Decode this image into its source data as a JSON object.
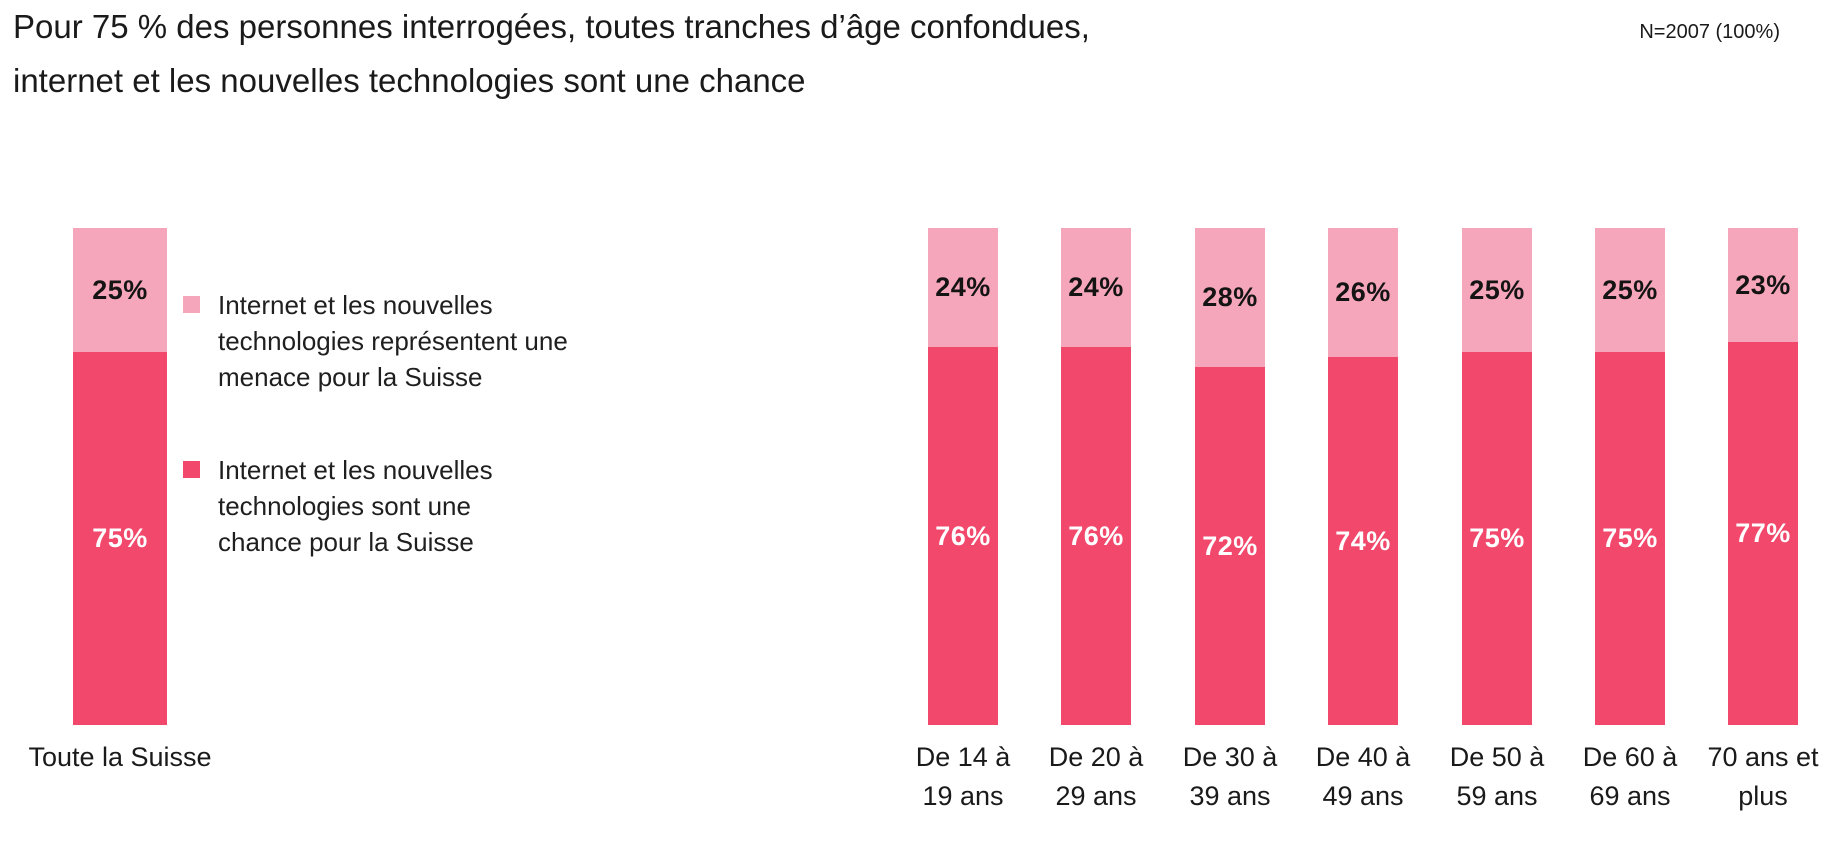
{
  "header": {
    "title_line1": "Pour 75 % des personnes interrogées, toutes tranches d’âge confondues,",
    "title_line2": "internet et les nouvelles technologies sont une chance",
    "sample_note": "N=2007 (100%)"
  },
  "legend": {
    "items": [
      {
        "label": "Internet et les nouvelles technologies représentent une menace pour la Suisse",
        "label_lines": [
          "Internet et les nouvelles",
          "technologies représentent une",
          "menace pour la Suisse"
        ],
        "color": "#f6a6ba"
      },
      {
        "label": "Internet et les nouvelles technologies sont une chance pour la Suisse",
        "label_lines": [
          "Internet et les nouvelles",
          "technologies sont une",
          "chance pour la Suisse"
        ],
        "color": "#f1486c"
      }
    ]
  },
  "chart_data": {
    "type": "bar",
    "subtype": "stacked-100-percent-columns",
    "unit": "%",
    "title": "Pour 75 % des personnes interrogées, toutes tranches d’âge confondues, internet et les nouvelles technologies sont une chance",
    "categories": [
      "Toute la Suisse",
      "De 14 à 19 ans",
      "De 20 à 29 ans",
      "De 30 à 39 ans",
      "De 40 à 49 ans",
      "De 50 à 59 ans",
      "De 60 à 69 ans",
      "70 ans et plus"
    ],
    "category_label_lines": [
      [
        "Toute la Suisse"
      ],
      [
        "De 14 à",
        "19 ans"
      ],
      [
        "De 20 à",
        "29 ans"
      ],
      [
        "De 30 à",
        "39 ans"
      ],
      [
        "De 40 à",
        "49 ans"
      ],
      [
        "De 50 à",
        "59 ans"
      ],
      [
        "De 60 à",
        "69 ans"
      ],
      [
        "70 ans et",
        "plus"
      ]
    ],
    "series": [
      {
        "name": "Internet et les nouvelles technologies représentent une menace pour la Suisse",
        "color": "#f6a6ba",
        "value_label_color": "#141414",
        "values": [
          25,
          24,
          24,
          28,
          26,
          25,
          25,
          23
        ]
      },
      {
        "name": "Internet et les nouvelles technologies sont une chance pour la Suisse",
        "color": "#f1486c",
        "value_label_color": "#ffffff",
        "values": [
          75,
          76,
          76,
          72,
          74,
          75,
          75,
          77
        ]
      }
    ],
    "value_labels": "inside-segments",
    "legend_position": "left-of-chart",
    "axes": {
      "y_axis_visible": false,
      "x_axis_line_visible": false,
      "grid": false
    },
    "ylim": [
      0,
      100
    ]
  }
}
